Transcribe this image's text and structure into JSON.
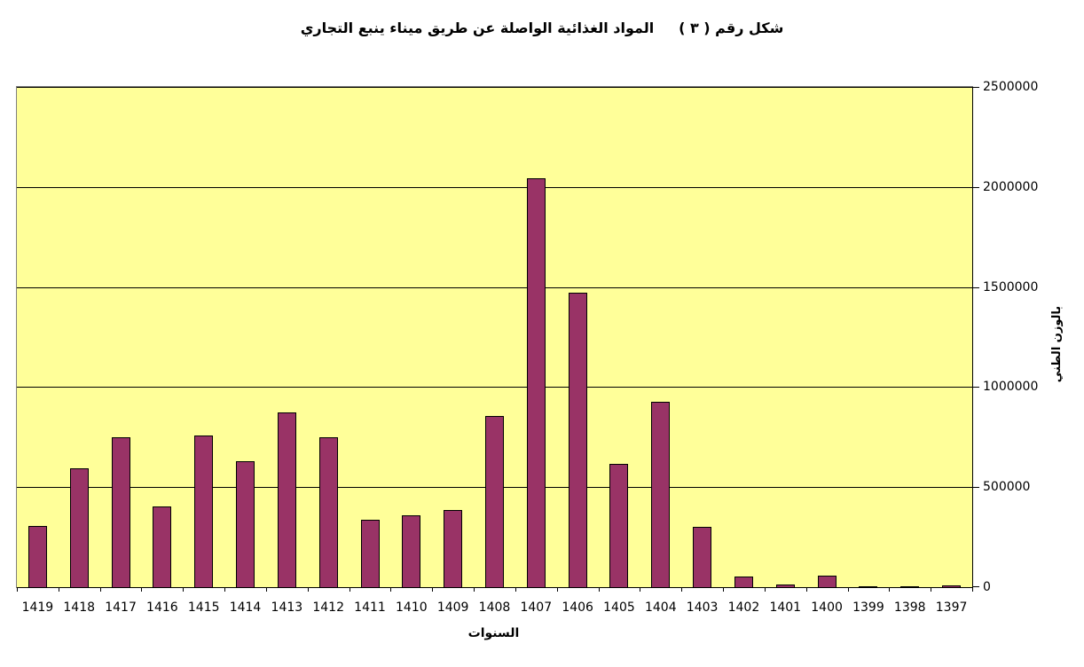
{
  "title": "شكل رقم ( ٣ )     المواد الغذائية الواصلة عن طريق ميناء ينبع التجاري",
  "chart_data": {
    "type": "bar",
    "title": "شكل رقم ( ٣ )     المواد الغذائية الواصلة عن طريق ميناء ينبع التجاري",
    "categories": [
      "1419",
      "1418",
      "1417",
      "1416",
      "1415",
      "1414",
      "1413",
      "1412",
      "1411",
      "1410",
      "1409",
      "1408",
      "1407",
      "1406",
      "1405",
      "1404",
      "1403",
      "1402",
      "1401",
      "1400",
      "1399",
      "1398",
      "1397"
    ],
    "values": [
      305000,
      595000,
      750000,
      405000,
      760000,
      630000,
      875000,
      750000,
      335000,
      360000,
      385000,
      855000,
      2045000,
      1470000,
      615000,
      925000,
      300000,
      53000,
      13000,
      58000,
      6000,
      6000,
      9000
    ],
    "xlabel": "السنوات",
    "ylabel": "بالوزن الطني",
    "ylim": [
      0,
      2500000
    ],
    "ytick_interval": 500000,
    "yticks": [
      0,
      500000,
      1000000,
      1500000,
      2000000,
      2500000
    ],
    "ytick_labels": [
      "0",
      "500000",
      "1000000",
      "1500000",
      "2000000",
      "2500000"
    ],
    "grid": true,
    "legend": "none",
    "axis_side": "right",
    "category_order": "right_to_left_years_descending_shown_left_to_right",
    "colors": {
      "bar_fill": "#993366",
      "bar_border": "#000000",
      "plot_background": "#FFFF99",
      "page_background": "#FFFFFF",
      "gridline": "#000000",
      "text": "#000000",
      "plot_border": "#808080"
    }
  }
}
